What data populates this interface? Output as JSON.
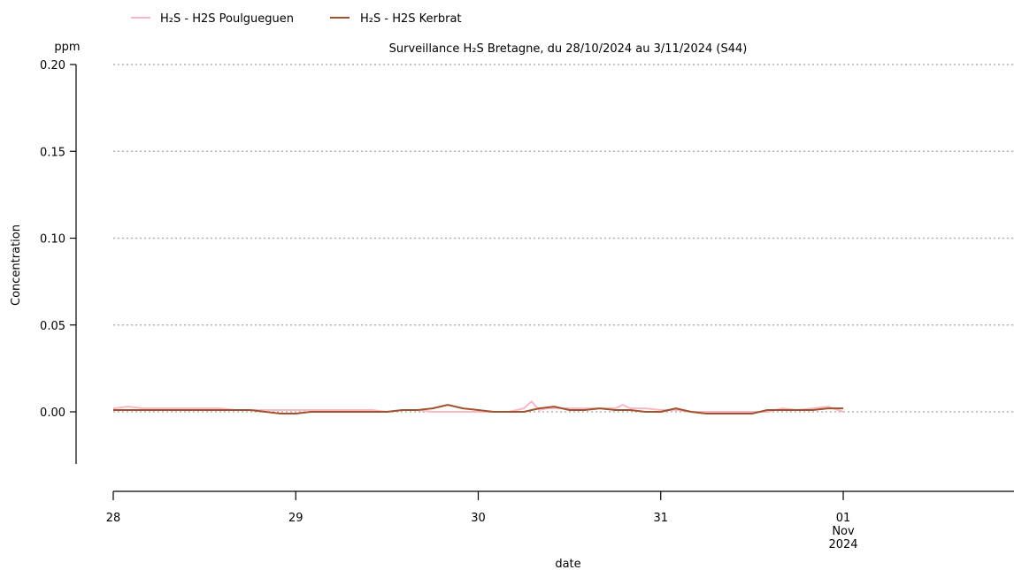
{
  "chart_data": {
    "type": "line",
    "title": "Surveillance H₂S Bretagne, du 28/10/2024 au 3/11/2024 (S44)",
    "ylabel": "Concentration",
    "y_unit": "ppm",
    "xlabel": "date",
    "ylim": [
      -0.03,
      0.2
    ],
    "y_ticks": [
      0.0,
      0.05,
      0.1,
      0.15,
      0.2
    ],
    "y_tick_labels": [
      "0.00",
      "0.05",
      "0.10",
      "0.15",
      "0.20"
    ],
    "xlim": [
      "2024-10-28",
      "2024-11-02T22:00"
    ],
    "x_ticks": [
      "2024-10-28",
      "2024-10-29",
      "2024-10-30",
      "2024-10-31",
      "2024-11-01"
    ],
    "x_tick_labels": [
      "28",
      "29",
      "30",
      "31",
      "01"
    ],
    "x_tick_extra": [
      "Nov",
      "2024"
    ],
    "grid": "horizontal dotted",
    "legend_position": "top-left",
    "series": [
      {
        "name": "H₂S - H2S Poulgueguen",
        "color": "#f7b8c4",
        "x": [
          "2024-10-28T00:00",
          "2024-10-28T02:00",
          "2024-10-28T04:00",
          "2024-10-28T06:00",
          "2024-10-28T08:00",
          "2024-10-28T10:00",
          "2024-10-28T12:00",
          "2024-10-28T14:00",
          "2024-10-28T16:00",
          "2024-10-28T18:00",
          "2024-10-28T20:00",
          "2024-10-28T22:00",
          "2024-10-29T00:00",
          "2024-10-29T02:00",
          "2024-10-29T04:00",
          "2024-10-29T06:00",
          "2024-10-29T08:00",
          "2024-10-29T10:00",
          "2024-10-29T12:00",
          "2024-10-29T14:00",
          "2024-10-29T16:00",
          "2024-10-29T18:00",
          "2024-10-29T20:00",
          "2024-10-29T22:00",
          "2024-10-30T00:00",
          "2024-10-30T02:00",
          "2024-10-30T04:00",
          "2024-10-30T06:00",
          "2024-10-30T07:00",
          "2024-10-30T08:00",
          "2024-10-30T09:00",
          "2024-10-30T10:00",
          "2024-10-30T12:00",
          "2024-10-30T14:00",
          "2024-10-30T16:00",
          "2024-10-30T18:00",
          "2024-10-30T19:00",
          "2024-10-30T20:00",
          "2024-10-30T22:00",
          "2024-10-31T00:00",
          "2024-10-31T02:00",
          "2024-10-31T04:00",
          "2024-10-31T06:00",
          "2024-10-31T08:00",
          "2024-10-31T10:00",
          "2024-10-31T12:00",
          "2024-10-31T14:00",
          "2024-10-31T16:00",
          "2024-10-31T18:00",
          "2024-10-31T20:00",
          "2024-10-31T22:00",
          "2024-11-01T00:00"
        ],
        "y": [
          0.002,
          0.003,
          0.002,
          0.002,
          0.002,
          0.002,
          0.002,
          0.002,
          0.001,
          0.001,
          0.001,
          0.001,
          0.001,
          0.001,
          0.001,
          0.001,
          0.001,
          0.001,
          0.0,
          0.001,
          0.001,
          0.0,
          0.0,
          0.0,
          0.0,
          0.0,
          0.0,
          0.002,
          0.006,
          0.001,
          0.002,
          0.002,
          0.002,
          0.002,
          0.002,
          0.002,
          0.004,
          0.002,
          0.002,
          0.001,
          0.001,
          0.0,
          0.0,
          0.0,
          0.0,
          0.0,
          0.0,
          0.002,
          0.001,
          0.002,
          0.003,
          0.0
        ]
      },
      {
        "name": "H₂S - H2S Kerbrat",
        "color": "#a0522d",
        "x": [
          "2024-10-28T00:00",
          "2024-10-28T02:00",
          "2024-10-28T04:00",
          "2024-10-28T06:00",
          "2024-10-28T08:00",
          "2024-10-28T10:00",
          "2024-10-28T12:00",
          "2024-10-28T14:00",
          "2024-10-28T16:00",
          "2024-10-28T18:00",
          "2024-10-28T20:00",
          "2024-10-28T22:00",
          "2024-10-29T00:00",
          "2024-10-29T02:00",
          "2024-10-29T04:00",
          "2024-10-29T06:00",
          "2024-10-29T07:00",
          "2024-10-29T08:00",
          "2024-10-29T10:00",
          "2024-10-29T12:00",
          "2024-10-29T14:00",
          "2024-10-29T16:00",
          "2024-10-29T18:00",
          "2024-10-29T20:00",
          "2024-10-29T22:00",
          "2024-10-30T00:00",
          "2024-10-30T02:00",
          "2024-10-30T04:00",
          "2024-10-30T06:00",
          "2024-10-30T08:00",
          "2024-10-30T10:00",
          "2024-10-30T12:00",
          "2024-10-30T14:00",
          "2024-10-30T16:00",
          "2024-10-30T18:00",
          "2024-10-30T20:00",
          "2024-10-30T22:00",
          "2024-10-31T00:00",
          "2024-10-31T02:00",
          "2024-10-31T04:00",
          "2024-10-31T06:00",
          "2024-10-31T08:00",
          "2024-10-31T10:00",
          "2024-10-31T12:00",
          "2024-10-31T14:00",
          "2024-10-31T16:00",
          "2024-10-31T18:00",
          "2024-10-31T20:00",
          "2024-10-31T22:00",
          "2024-11-01T00:00"
        ],
        "y": [
          0.001,
          0.001,
          0.001,
          0.001,
          0.001,
          0.001,
          0.001,
          0.001,
          0.001,
          0.001,
          0.0,
          -0.001,
          -0.001,
          0.0,
          0.0,
          0.0,
          0.0,
          0.0,
          0.0,
          0.0,
          0.001,
          0.001,
          0.002,
          0.004,
          0.002,
          0.001,
          0.0,
          0.0,
          0.0,
          0.002,
          0.003,
          0.001,
          0.001,
          0.002,
          0.001,
          0.001,
          0.0,
          0.0,
          0.002,
          0.0,
          -0.001,
          -0.001,
          -0.001,
          -0.001,
          0.001,
          0.001,
          0.001,
          0.001,
          0.002,
          0.002
        ]
      }
    ]
  }
}
